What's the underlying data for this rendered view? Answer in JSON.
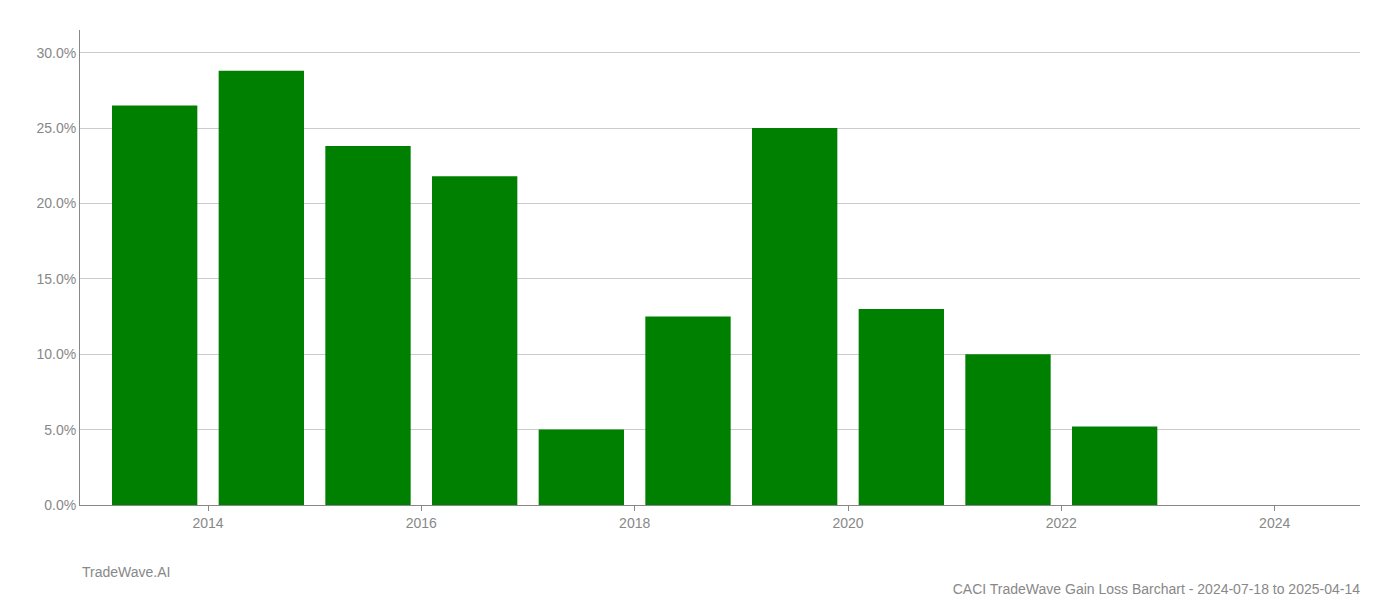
{
  "chart_data": {
    "type": "bar",
    "title": "CACI TradeWave Gain Loss Barchart - 2024-07-18 to 2025-04-14",
    "annotations": [
      {
        "text": "TradeWave.AI"
      }
    ],
    "x": [
      2013.5,
      2014.5,
      2015.5,
      2016.5,
      2017.5,
      2018.5,
      2019.5,
      2020.5,
      2021.5,
      2022.5
    ],
    "values": [
      0.265,
      0.288,
      0.238,
      0.218,
      0.05,
      0.125,
      0.25,
      0.13,
      0.1,
      0.052
    ],
    "color": "#008000",
    "xlim": [
      2012.8,
      2024.8
    ],
    "xticks": [
      2014,
      2016,
      2018,
      2020,
      2022,
      2024
    ],
    "ylim": [
      0,
      0.315
    ],
    "yticks": [
      {
        "value": 0.0,
        "label": "0.0%"
      },
      {
        "value": 0.05,
        "label": "5.0%"
      },
      {
        "value": 0.1,
        "label": "10.0%"
      },
      {
        "value": 0.15,
        "label": "15.0%"
      },
      {
        "value": 0.2,
        "label": "20.0%"
      },
      {
        "value": 0.25,
        "label": "25.0%"
      },
      {
        "value": 0.3,
        "label": "30.0%"
      }
    ],
    "grid": true
  }
}
